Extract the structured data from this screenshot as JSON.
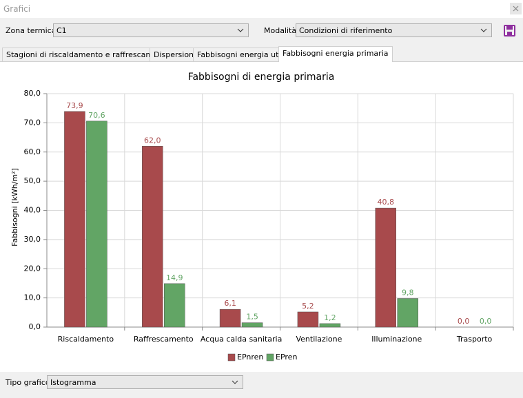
{
  "window": {
    "title": "Grafici"
  },
  "filters": {
    "zona_label": "Zona termica",
    "zona_value": "C1",
    "modalita_label": "Modalità",
    "modalita_value": "Condizioni di riferimento"
  },
  "tabs": [
    "Stagioni di riscaldamento e raffrescamento",
    "Dispersioni",
    "Fabbisogni energia utile",
    "Fabbisogni energia primaria"
  ],
  "chart_type": {
    "label": "Tipo grafico",
    "value": "Istogramma"
  },
  "chart_data": {
    "type": "bar",
    "title": "Fabbisogni di energia primaria",
    "y_label": "Fabbisogni [kWh/m²]",
    "categories": [
      "Riscaldamento",
      "Raffrescamento",
      "Acqua calda sanitaria",
      "Ventilazione",
      "Illuminazione",
      "Trasporto"
    ],
    "series": [
      {
        "name": "EPnren",
        "color": "#a84a4c",
        "values": [
          73.9,
          62.0,
          6.1,
          5.2,
          40.8,
          0.0
        ],
        "value_labels": [
          "73,9",
          "62,0",
          "6,1",
          "5,2",
          "40,8",
          "0,0"
        ]
      },
      {
        "name": "EPren",
        "color": "#62a565",
        "values": [
          70.6,
          14.9,
          1.5,
          1.2,
          9.8,
          0.0
        ],
        "value_labels": [
          "70,6",
          "14,9",
          "1,5",
          "1,2",
          "9,8",
          "0,0"
        ]
      }
    ],
    "ylim": [
      0,
      80
    ],
    "yticks": [
      {
        "value": 0,
        "label": "0,0"
      },
      {
        "value": 10,
        "label": "10,0"
      },
      {
        "value": 20,
        "label": "20,0"
      },
      {
        "value": 30,
        "label": "30,0"
      },
      {
        "value": 40,
        "label": "40,0"
      },
      {
        "value": 50,
        "label": "50,0"
      },
      {
        "value": 60,
        "label": "60,0"
      },
      {
        "value": 70,
        "label": "70,0"
      },
      {
        "value": 80,
        "label": "80,0"
      }
    ],
    "grid": true,
    "legend": "bottom"
  }
}
